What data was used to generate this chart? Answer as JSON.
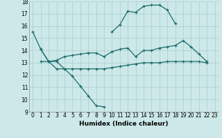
{
  "xlabel": "Humidex (Indice chaleur)",
  "bg_color": "#cce8e8",
  "grid_color": "#aacccc",
  "line_color": "#1a6b6b",
  "xlim": [
    -0.5,
    23.5
  ],
  "ylim": [
    9,
    18
  ],
  "xticks": [
    0,
    1,
    2,
    3,
    4,
    5,
    6,
    7,
    8,
    9,
    10,
    11,
    12,
    13,
    14,
    15,
    16,
    17,
    18,
    19,
    20,
    21,
    22,
    23
  ],
  "yticks": [
    9,
    10,
    11,
    12,
    13,
    14,
    15,
    16,
    17,
    18
  ],
  "curves": [
    {
      "x": [
        0,
        1,
        2,
        3,
        4,
        5,
        6,
        7,
        8,
        9
      ],
      "y": [
        15.5,
        14.1,
        13.1,
        13.1,
        12.5,
        11.9,
        11.1,
        10.3,
        9.5,
        9.4
      ]
    },
    {
      "x": [
        10,
        11,
        12,
        13,
        14,
        15,
        16,
        17,
        18
      ],
      "y": [
        15.5,
        16.1,
        17.2,
        17.1,
        17.6,
        17.7,
        17.7,
        17.3,
        16.2
      ]
    },
    {
      "x": [
        1,
        2,
        3,
        4,
        5,
        6,
        7,
        8,
        9,
        10,
        11,
        12,
        13,
        14,
        15,
        16,
        17,
        18,
        19,
        20,
        21,
        22
      ],
      "y": [
        14.1,
        13.1,
        13.2,
        13.5,
        13.6,
        13.7,
        13.8,
        13.8,
        13.5,
        13.9,
        14.1,
        14.2,
        13.5,
        14.0,
        14.0,
        14.2,
        14.3,
        14.4,
        14.8,
        14.3,
        13.7,
        13.1
      ]
    },
    {
      "x": [
        1,
        2,
        3,
        4,
        5,
        6,
        7,
        8,
        9,
        10,
        11,
        12,
        13,
        14,
        15,
        16,
        17,
        18,
        19,
        20,
        21,
        22
      ],
      "y": [
        13.1,
        13.1,
        12.5,
        12.5,
        12.5,
        12.5,
        12.5,
        12.5,
        12.5,
        12.6,
        12.7,
        12.8,
        12.9,
        13.0,
        13.0,
        13.0,
        13.1,
        13.1,
        13.1,
        13.1,
        13.1,
        13.0
      ]
    }
  ]
}
